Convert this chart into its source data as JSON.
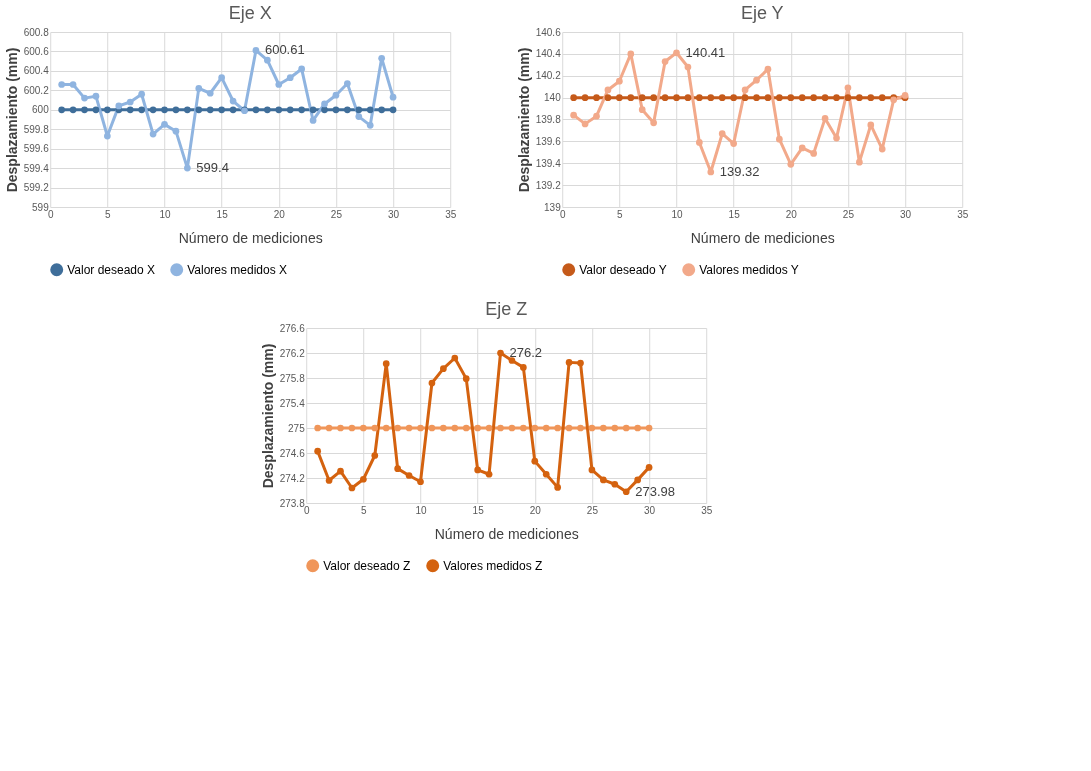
{
  "chart_data": [
    {
      "type": "line",
      "title": "Eje X",
      "xlabel": "Número de mediciones",
      "ylabel": "Desplazamiento (mm)",
      "xlim": [
        0,
        35
      ],
      "xticks": [
        0,
        5,
        10,
        15,
        20,
        25,
        30,
        35
      ],
      "ylim": [
        599,
        600.8
      ],
      "yticks": [
        599,
        599.2,
        599.4,
        599.6,
        599.8,
        600,
        600.2,
        600.4,
        600.6,
        600.8
      ],
      "grid": true,
      "legend": "bottom",
      "marker": "circle",
      "line_style": "solid",
      "x": [
        1,
        2,
        3,
        4,
        5,
        6,
        7,
        8,
        9,
        10,
        11,
        12,
        13,
        14,
        15,
        16,
        17,
        18,
        19,
        20,
        21,
        22,
        23,
        24,
        25,
        26,
        27,
        28,
        29,
        30
      ],
      "series": [
        {
          "name": "Valor deseado X",
          "color": "#3f6e9a",
          "values": [
            600,
            600,
            600,
            600,
            600,
            600,
            600,
            600,
            600,
            600,
            600,
            600,
            600,
            600,
            600,
            600,
            600,
            600,
            600,
            600,
            600,
            600,
            600,
            600,
            600,
            600,
            600,
            600,
            600,
            600
          ]
        },
        {
          "name": "Valores medidos X",
          "color": "#8fb4e0",
          "values": [
            600.26,
            600.26,
            600.12,
            600.14,
            599.73,
            600.04,
            600.08,
            600.16,
            599.75,
            599.85,
            599.78,
            599.4,
            600.22,
            600.17,
            600.33,
            600.09,
            599.99,
            600.61,
            600.51,
            600.26,
            600.33,
            600.42,
            599.89,
            600.06,
            600.15,
            600.27,
            599.93,
            599.84,
            600.53,
            600.13
          ]
        }
      ],
      "annotations": [
        {
          "text": "600.61",
          "x": 18,
          "y": 600.61
        },
        {
          "text": "599.4",
          "x": 12,
          "y": 599.4
        }
      ]
    },
    {
      "type": "line",
      "title": "Eje Y",
      "xlabel": "Número de mediciones",
      "ylabel": "Desplazamiento (mm)",
      "xlim": [
        0,
        35
      ],
      "xticks": [
        0,
        5,
        10,
        15,
        20,
        25,
        30,
        35
      ],
      "ylim": [
        139,
        140.6
      ],
      "yticks": [
        139,
        139.2,
        139.4,
        139.6,
        139.8,
        140,
        140.2,
        140.4,
        140.6
      ],
      "grid": true,
      "legend": "bottom",
      "marker": "circle",
      "line_style": "solid",
      "x": [
        1,
        2,
        3,
        4,
        5,
        6,
        7,
        8,
        9,
        10,
        11,
        12,
        13,
        14,
        15,
        16,
        17,
        18,
        19,
        20,
        21,
        22,
        23,
        24,
        25,
        26,
        27,
        28,
        29,
        30
      ],
      "series": [
        {
          "name": "Valor deseado Y",
          "color": "#c55a1a",
          "values": [
            140,
            140,
            140,
            140,
            140,
            140,
            140,
            140,
            140,
            140,
            140,
            140,
            140,
            140,
            140,
            140,
            140,
            140,
            140,
            140,
            140,
            140,
            140,
            140,
            140,
            140,
            140,
            140,
            140,
            140
          ]
        },
        {
          "name": "Valores medidos Y",
          "color": "#f2a98a",
          "values": [
            139.84,
            139.76,
            139.83,
            140.07,
            140.15,
            140.4,
            139.89,
            139.77,
            140.33,
            140.41,
            140.28,
            139.59,
            139.32,
            139.67,
            139.58,
            140.07,
            140.16,
            140.26,
            139.62,
            139.39,
            139.54,
            139.49,
            139.81,
            139.63,
            140.09,
            139.41,
            139.75,
            139.53,
            139.98,
            140.02
          ]
        }
      ],
      "annotations": [
        {
          "text": "140.41",
          "x": 10,
          "y": 140.41
        },
        {
          "text": "139.32",
          "x": 13,
          "y": 139.32
        }
      ]
    },
    {
      "type": "line",
      "title": "Eje Z",
      "xlabel": "Número de mediciones",
      "ylabel": "Desplazamiento (mm)",
      "xlim": [
        0,
        35
      ],
      "xticks": [
        0,
        5,
        10,
        15,
        20,
        25,
        30,
        35
      ],
      "ylim": [
        273.8,
        276.6
      ],
      "yticks": [
        273.8,
        274.2,
        274.6,
        275,
        275.4,
        275.8,
        276.2,
        276.6
      ],
      "grid": true,
      "legend": "bottom",
      "marker": "circle",
      "line_style": "solid",
      "x": [
        1,
        2,
        3,
        4,
        5,
        6,
        7,
        8,
        9,
        10,
        11,
        12,
        13,
        14,
        15,
        16,
        17,
        18,
        19,
        20,
        21,
        22,
        23,
        24,
        25,
        26,
        27,
        28,
        29,
        30
      ],
      "series": [
        {
          "name": "Valor deseado Z",
          "color": "#f0965a",
          "values": [
            275,
            275,
            275,
            275,
            275,
            275,
            275,
            275,
            275,
            275,
            275,
            275,
            275,
            275,
            275,
            275,
            275,
            275,
            275,
            275,
            275,
            275,
            275,
            275,
            275,
            275,
            275,
            275,
            275,
            275
          ]
        },
        {
          "name": "Valores medidos Z",
          "color": "#d4620f",
          "values": [
            274.63,
            274.16,
            274.31,
            274.04,
            274.18,
            274.56,
            276.03,
            274.35,
            274.24,
            274.14,
            275.72,
            275.95,
            276.12,
            275.79,
            274.33,
            274.26,
            276.2,
            276.08,
            275.97,
            274.47,
            274.26,
            274.05,
            276.05,
            276.04,
            274.33,
            274.17,
            274.1,
            273.98,
            274.17,
            274.37
          ]
        }
      ],
      "annotations": [
        {
          "text": "276.2",
          "x": 17,
          "y": 276.2
        },
        {
          "text": "273.98",
          "x": 28,
          "y": 273.98
        }
      ]
    }
  ]
}
